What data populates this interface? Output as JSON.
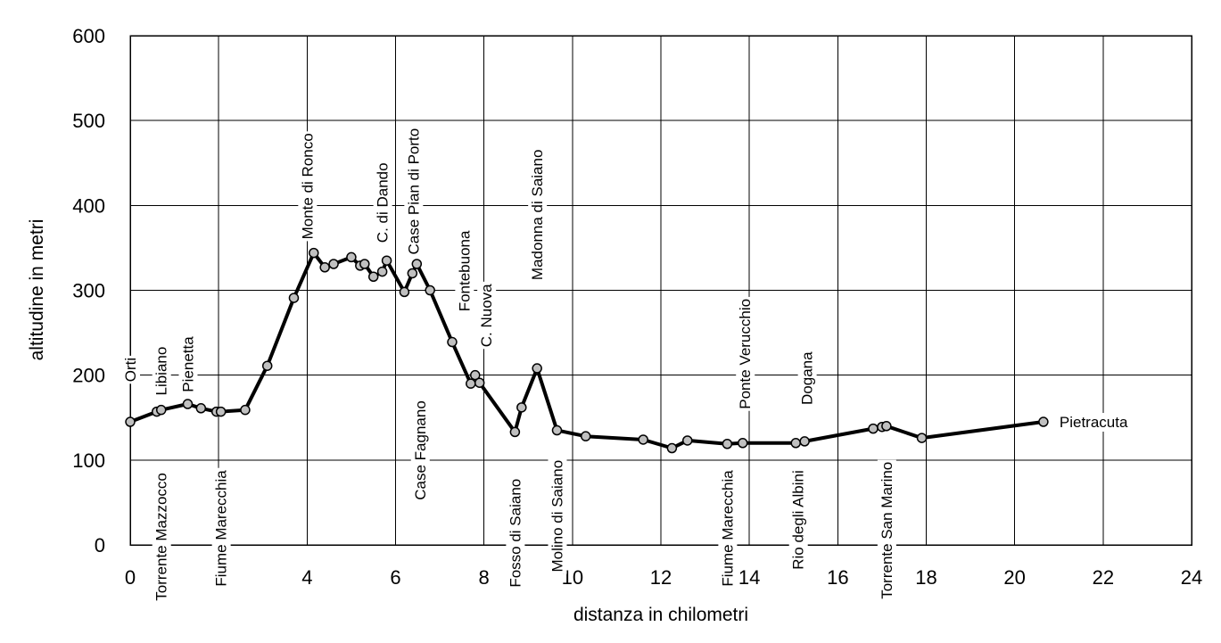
{
  "chart_data": {
    "type": "line",
    "title": "",
    "xlabel": "distanza in chilometri",
    "ylabel": "altitudine  in metri",
    "xlim": [
      0,
      24
    ],
    "ylim": [
      0,
      600
    ],
    "xticks": [
      0,
      2,
      4,
      6,
      8,
      10,
      12,
      14,
      16,
      18,
      20,
      22,
      24
    ],
    "yticks": [
      0,
      100,
      200,
      300,
      400,
      500,
      600
    ],
    "grid": true,
    "legend": "none",
    "series": [
      {
        "x": [
          0,
          0.6,
          0.7,
          1.3,
          1.6,
          1.95,
          2.05,
          2.6,
          3.1,
          3.7,
          4.15,
          4.4,
          4.6,
          5.0,
          5.2,
          5.3,
          5.5,
          5.7,
          5.8,
          6.2,
          6.38,
          6.48,
          6.78,
          7.28,
          7.7,
          7.8,
          7.9,
          8.7,
          8.85,
          9.2,
          9.65,
          10.3,
          11.6,
          12.25,
          12.6,
          13.5,
          13.85,
          15.05,
          15.25,
          16.8,
          17.0,
          17.1,
          17.9,
          20.65
        ],
        "y": [
          145,
          157,
          159,
          166,
          161,
          157,
          157,
          159,
          211,
          291,
          344,
          327,
          331,
          339,
          329,
          331,
          316,
          322,
          335,
          298,
          320,
          331,
          300,
          239,
          190,
          200,
          191,
          133,
          162,
          208,
          135,
          128,
          124,
          114,
          123,
          119,
          120,
          120,
          122,
          137,
          139,
          140,
          126,
          145
        ]
      }
    ],
    "annotations": [
      {
        "text": "Orti",
        "x": 0,
        "side": "above"
      },
      {
        "text": "Torrente Mazzocco",
        "x": 0.7,
        "side": "below"
      },
      {
        "text": "Libiano",
        "x": 0.7,
        "side": "above"
      },
      {
        "text": "Pienetta",
        "x": 1.3,
        "side": "above"
      },
      {
        "text": "Fiume Marecchia",
        "x": 2.05,
        "side": "below"
      },
      {
        "text": "Monte di Ronco",
        "x": 4.0,
        "side": "above"
      },
      {
        "text": "C. di Dando",
        "x": 5.7,
        "side": "above"
      },
      {
        "text": "Case Pian di Porto",
        "x": 6.4,
        "side": "above"
      },
      {
        "text": "Case Fagnano",
        "x": 6.55,
        "side": "below"
      },
      {
        "text": "Fontebuona",
        "x": 7.55,
        "side": "above"
      },
      {
        "text": "C. Nuova",
        "x": 8.05,
        "side": "above"
      },
      {
        "text": "Fosso di Saiano",
        "x": 8.7,
        "side": "below"
      },
      {
        "text": "Madonna di Saiano",
        "x": 9.2,
        "side": "above"
      },
      {
        "text": "Molino di Saiano",
        "x": 9.65,
        "side": "below"
      },
      {
        "text": "Fiume Marecchia",
        "x": 13.5,
        "side": "below"
      },
      {
        "text": "Ponte Verucchio",
        "x": 13.9,
        "side": "above"
      },
      {
        "text": "Rio degli Albini",
        "x": 15.1,
        "side": "below"
      },
      {
        "text": "Dogana",
        "x": 15.3,
        "side": "above"
      },
      {
        "text": "Torrente San Marino",
        "x": 17.1,
        "side": "below"
      },
      {
        "text": "Pietracuta",
        "x": 20.65,
        "side": "right"
      }
    ]
  }
}
